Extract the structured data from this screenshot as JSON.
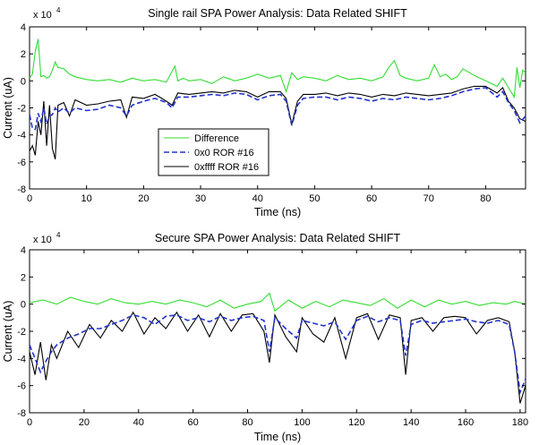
{
  "chart_data": [
    {
      "type": "line",
      "title": "Single rail SPA Power Analysis:  Data Related SHIFT",
      "xlabel": "Time (ns)",
      "ylabel": "Current (uA)",
      "exponent_base": "x 10",
      "exponent_power": "4",
      "xlim": [
        0,
        87
      ],
      "ylim": [
        -8,
        4
      ],
      "xticks": [
        0,
        10,
        20,
        30,
        40,
        50,
        60,
        70,
        80
      ],
      "yticks": [
        4,
        2,
        0,
        -2,
        -4,
        -6,
        -8
      ],
      "legend": {
        "placement": "middle-left",
        "entries": [
          "Difference",
          "0x0 ROR #16",
          "0xffff ROR #16"
        ]
      },
      "series": [
        {
          "name": "Difference",
          "color": "#33dd33",
          "style": "solid",
          "x": [
            0,
            0.5,
            1,
            1.5,
            2,
            2.5,
            3,
            3.5,
            4,
            4.5,
            5,
            6,
            7,
            8,
            9,
            10,
            12,
            14,
            16,
            18,
            20,
            22,
            24,
            25.5,
            26,
            27,
            28,
            30,
            32,
            34,
            36,
            38,
            40,
            42,
            44,
            45,
            46,
            47,
            48,
            50,
            52,
            54,
            56,
            58,
            60,
            62,
            63,
            64,
            65,
            66,
            68,
            70,
            71,
            72,
            73,
            74,
            75,
            76,
            78,
            80,
            82,
            83,
            84,
            85,
            85.5,
            86,
            86.5,
            87
          ],
          "values": [
            0.2,
            0.5,
            2.2,
            3.1,
            0.3,
            0.4,
            0.2,
            0.3,
            0.8,
            1.4,
            1.0,
            0.9,
            0.5,
            0.3,
            0.2,
            0.1,
            0.0,
            0.1,
            -0.1,
            0.2,
            0.0,
            0.1,
            -0.1,
            1.1,
            0.0,
            0.2,
            0.0,
            0.1,
            -0.2,
            0.3,
            0.0,
            0.2,
            0.5,
            0.2,
            0.4,
            -0.8,
            0.6,
            0.1,
            0.3,
            0.2,
            0.0,
            0.4,
            0.1,
            0.2,
            0.0,
            0.3,
            1.0,
            1.5,
            0.4,
            0.2,
            0.0,
            0.2,
            1.2,
            0.3,
            0.5,
            0.1,
            0.3,
            0.9,
            0.4,
            0.0,
            -0.4,
            0.2,
            -0.5,
            -1.2,
            1.0,
            -0.5,
            0.8,
            0.6
          ]
        },
        {
          "name": "0x0 ROR #16",
          "color": "#2233cc",
          "style": "dashed",
          "x": [
            0,
            0.5,
            1,
            1.5,
            2,
            2.5,
            3,
            3.5,
            4,
            4.5,
            5,
            6,
            7,
            8,
            10,
            12,
            14,
            16,
            17,
            18,
            20,
            22,
            24,
            25,
            26,
            28,
            30,
            32,
            34,
            36,
            38,
            40,
            42,
            44,
            45,
            46,
            47,
            48,
            50,
            52,
            54,
            56,
            58,
            60,
            62,
            64,
            66,
            68,
            70,
            72,
            74,
            76,
            78,
            80,
            82,
            83,
            84,
            85,
            86,
            87
          ],
          "values": [
            -2.5,
            -3.5,
            -3.6,
            -2.4,
            -3.0,
            -2.0,
            -3.2,
            -2.6,
            -2.5,
            -2.0,
            -2.3,
            -2.0,
            -2.4,
            -2.0,
            -2.2,
            -2.1,
            -1.8,
            -2.0,
            -2.6,
            -1.8,
            -1.5,
            -1.3,
            -1.6,
            -2.0,
            -1.2,
            -1.2,
            -1.1,
            -1.0,
            -1.1,
            -0.9,
            -1.0,
            -1.4,
            -1.1,
            -1.0,
            -1.5,
            -3.3,
            -1.8,
            -1.3,
            -1.2,
            -1.2,
            -1.4,
            -1.2,
            -1.3,
            -1.5,
            -1.3,
            -1.4,
            -1.2,
            -1.3,
            -1.4,
            -1.3,
            -1.1,
            -0.8,
            -0.6,
            -0.5,
            -1.2,
            -0.8,
            -1.6,
            -2.2,
            -3.1,
            -2.6
          ]
        },
        {
          "name": "0xffff ROR #16",
          "color": "#000000",
          "style": "solid",
          "x": [
            0,
            0.5,
            1,
            1.5,
            2,
            2.5,
            3,
            3.5,
            4,
            4.5,
            5,
            6,
            7,
            8,
            10,
            12,
            14,
            16,
            17,
            18,
            20,
            22,
            24,
            25,
            26,
            28,
            30,
            32,
            34,
            36,
            38,
            40,
            42,
            44,
            45,
            46,
            47,
            48,
            50,
            52,
            54,
            56,
            58,
            60,
            62,
            64,
            66,
            68,
            70,
            72,
            74,
            76,
            78,
            80,
            82,
            83,
            84,
            85,
            86,
            87
          ],
          "values": [
            -5.2,
            -4.8,
            -5.5,
            -3.0,
            -4.0,
            -1.5,
            -4.8,
            -1.8,
            -5.0,
            -5.8,
            -1.8,
            -1.6,
            -2.6,
            -1.4,
            -1.8,
            -1.7,
            -1.5,
            -1.4,
            -2.7,
            -1.2,
            -1.3,
            -1.0,
            -1.5,
            -1.8,
            -0.9,
            -1.0,
            -0.9,
            -0.8,
            -0.9,
            -0.7,
            -0.8,
            -1.2,
            -0.8,
            -0.8,
            -1.3,
            -3.2,
            -1.5,
            -1.0,
            -1.0,
            -0.9,
            -1.1,
            -0.9,
            -1.0,
            -1.2,
            -1.0,
            -1.1,
            -0.9,
            -1.0,
            -1.1,
            -1.0,
            -0.9,
            -0.6,
            -0.4,
            -0.4,
            -0.9,
            -0.5,
            -1.5,
            -2.0,
            -2.8,
            -3.0
          ]
        }
      ]
    },
    {
      "type": "line",
      "title": "Secure SPA Power Analysis:  Data Related SHIFT",
      "xlabel": "Time (ns)",
      "ylabel": "Current (uA)",
      "exponent_base": "x 10",
      "exponent_power": "4",
      "xlim": [
        0,
        182
      ],
      "ylim": [
        -8,
        4
      ],
      "xticks": [
        0,
        20,
        40,
        60,
        80,
        100,
        120,
        140,
        160,
        180
      ],
      "yticks": [
        4,
        2,
        0,
        -2,
        -4,
        -6,
        -8
      ],
      "series": [
        {
          "name": "Difference",
          "color": "#33dd33",
          "style": "solid",
          "x": [
            0,
            5,
            10,
            15,
            20,
            25,
            30,
            35,
            40,
            45,
            50,
            55,
            60,
            65,
            70,
            75,
            80,
            85,
            88,
            90,
            95,
            100,
            105,
            110,
            115,
            120,
            125,
            130,
            135,
            140,
            145,
            150,
            155,
            160,
            165,
            170,
            175,
            178,
            180,
            182
          ],
          "values": [
            0.1,
            0.3,
            0.0,
            0.5,
            0.2,
            0.0,
            0.4,
            0.1,
            0.0,
            0.2,
            0.0,
            0.3,
            0.1,
            -0.2,
            0.3,
            -0.3,
            0.0,
            0.2,
            0.8,
            -0.5,
            0.3,
            -0.3,
            0.2,
            -0.2,
            0.3,
            0.1,
            -0.1,
            0.4,
            -0.3,
            0.3,
            -0.2,
            0.3,
            0.0,
            0.2,
            -0.1,
            0.1,
            0.0,
            0.2,
            0.1,
            0.0
          ]
        },
        {
          "name": "0x0 ROR #16",
          "color": "#2233cc",
          "style": "dashed",
          "x": [
            0,
            2,
            4,
            6,
            8,
            10,
            14,
            18,
            22,
            26,
            30,
            34,
            38,
            42,
            46,
            50,
            54,
            58,
            62,
            66,
            70,
            74,
            78,
            82,
            86,
            88,
            90,
            94,
            98,
            100,
            104,
            108,
            112,
            116,
            120,
            124,
            128,
            132,
            136,
            138,
            140,
            144,
            148,
            152,
            156,
            160,
            164,
            168,
            172,
            176,
            178,
            180,
            182
          ],
          "values": [
            -3.0,
            -4.0,
            -5.0,
            -4.2,
            -3.5,
            -3.0,
            -2.5,
            -2.2,
            -1.8,
            -1.8,
            -1.5,
            -1.2,
            -0.8,
            -1.0,
            -1.5,
            -0.9,
            -0.8,
            -1.2,
            -1.0,
            -1.3,
            -0.9,
            -1.2,
            -1.0,
            -0.9,
            -1.2,
            -3.5,
            -1.0,
            -1.8,
            -2.5,
            -1.2,
            -1.4,
            -1.6,
            -1.3,
            -2.6,
            -1.2,
            -0.9,
            -1.3,
            -1.0,
            -1.2,
            -3.8,
            -1.5,
            -1.2,
            -1.4,
            -1.3,
            -1.2,
            -1.1,
            -1.3,
            -1.4,
            -1.2,
            -1.5,
            -3.5,
            -6.5,
            -5.5
          ]
        },
        {
          "name": "0xffff ROR #16",
          "color": "#000000",
          "style": "solid",
          "x": [
            0,
            2,
            4,
            6,
            8,
            10,
            14,
            18,
            22,
            26,
            30,
            34,
            38,
            42,
            46,
            50,
            54,
            58,
            62,
            66,
            70,
            74,
            78,
            82,
            86,
            88,
            90,
            94,
            98,
            100,
            104,
            108,
            112,
            116,
            120,
            124,
            128,
            132,
            136,
            138,
            140,
            144,
            148,
            152,
            156,
            160,
            164,
            168,
            172,
            176,
            178,
            180,
            182
          ],
          "values": [
            -3.5,
            -5.2,
            -2.8,
            -5.6,
            -3.0,
            -4.0,
            -2.0,
            -3.2,
            -1.5,
            -2.5,
            -1.2,
            -2.0,
            -0.6,
            -2.2,
            -1.0,
            -1.8,
            -0.6,
            -2.0,
            -0.8,
            -2.4,
            -0.7,
            -2.0,
            -0.8,
            -0.7,
            -2.0,
            -4.3,
            -0.8,
            -2.4,
            -3.5,
            -1.0,
            -2.2,
            -2.8,
            -1.0,
            -4.0,
            -1.0,
            -0.7,
            -2.6,
            -0.8,
            -1.0,
            -5.2,
            -1.2,
            -1.0,
            -2.0,
            -1.0,
            -0.9,
            -1.0,
            -2.2,
            -1.2,
            -1.0,
            -1.3,
            -3.5,
            -7.3,
            -6.0
          ]
        }
      ]
    }
  ]
}
